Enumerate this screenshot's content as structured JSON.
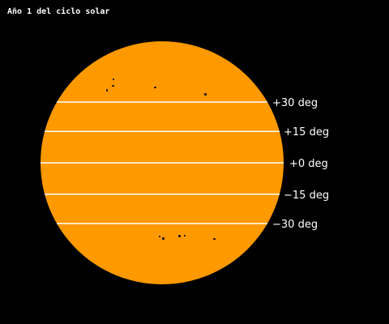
{
  "title": "Año 1 del ciclo solar",
  "colors": {
    "background": "#000000",
    "sun_disk": "#ff9900",
    "latitude_line": "#ffffff",
    "sunspot": "#3a2010",
    "label_text": "#ffffff"
  },
  "latitude_lines": [
    {
      "latitude_deg": 30,
      "label": "+30 deg"
    },
    {
      "latitude_deg": 15,
      "label": "+15 deg"
    },
    {
      "latitude_deg": 0,
      "label": "+0 deg"
    },
    {
      "latitude_deg": -15,
      "label": "−15 deg"
    },
    {
      "latitude_deg": -30,
      "label": "−30 deg"
    }
  ]
}
